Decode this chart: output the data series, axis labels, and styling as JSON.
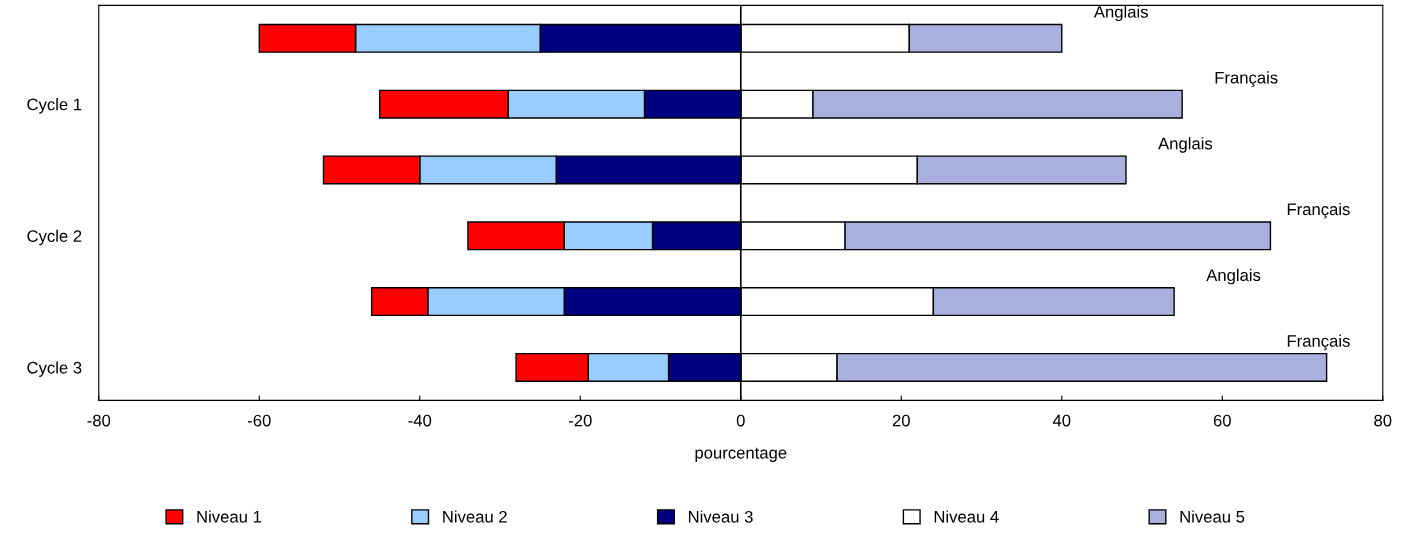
{
  "chart_data": {
    "type": "bar",
    "orientation": "horizontal",
    "stacked": true,
    "xlabel": "pourcentage",
    "categories": [
      null,
      "Cycle 1",
      null,
      "Cycle 2",
      null,
      "Cycle 3"
    ],
    "series": [
      {
        "name": "Niveau 1",
        "color": "#ff0000",
        "values": [
          -12,
          -16,
          -12,
          -12,
          -7,
          -9
        ]
      },
      {
        "name": "Niveau 2",
        "color": "#99ccff",
        "values": [
          -23,
          -17,
          -17,
          -11,
          -17,
          -10
        ]
      },
      {
        "name": "Niveau 3",
        "color": "#000080",
        "values": [
          -25,
          -12,
          -23,
          -11,
          -22,
          -9
        ]
      },
      {
        "name": "Niveau 4",
        "color": "#ffffff",
        "values": [
          21,
          9,
          22,
          13,
          24,
          12
        ]
      },
      {
        "name": "Niveau 5",
        "color": "#aab0dd",
        "values": [
          19,
          46,
          26,
          53,
          30,
          61
        ]
      }
    ],
    "xlim": [
      -80,
      80
    ],
    "xticks": [
      -80,
      -60,
      -40,
      -20,
      0,
      20,
      40,
      60,
      80
    ],
    "ref_lines": [
      {
        "axis": "x",
        "value": 0,
        "color": "#000000"
      }
    ],
    "annotations": [
      "Anglais",
      "Français",
      "Anglais",
      "Français",
      "Anglais",
      "Français"
    ],
    "legend": "bottom",
    "grid": false
  }
}
